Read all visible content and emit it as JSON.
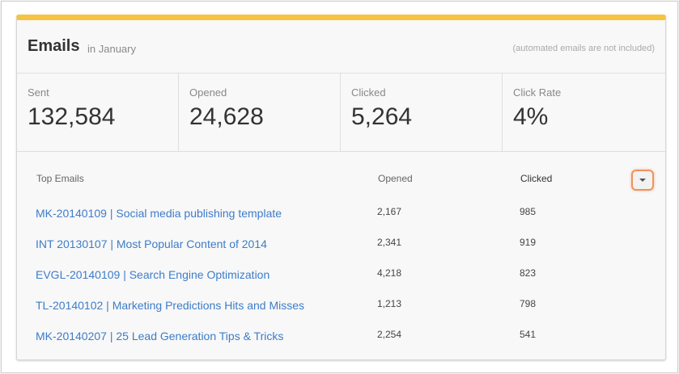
{
  "widget": {
    "title": "Emails",
    "subtitle": "in January",
    "note": "(automated emails are not included)",
    "accent_color": "#f6c343",
    "link_color": "#3d7cc9",
    "highlight_color": "#f0935a"
  },
  "stats": [
    {
      "label": "Sent",
      "value": "132,584"
    },
    {
      "label": "Opened",
      "value": "24,628"
    },
    {
      "label": "Clicked",
      "value": "5,264"
    },
    {
      "label": "Click Rate",
      "value": "4%"
    }
  ],
  "table": {
    "headers": {
      "name": "Top Emails",
      "opened": "Opened",
      "clicked": "Clicked"
    },
    "sort_icon": "caret-down-icon",
    "rows": [
      {
        "name": "MK-20140109 | Social media publishing template",
        "opened": "2,167",
        "clicked": "985"
      },
      {
        "name": "INT 20130107 | Most Popular Content of 2014",
        "opened": "2,341",
        "clicked": "919"
      },
      {
        "name": "EVGL-20140109 | Search Engine Optimization",
        "opened": "4,218",
        "clicked": "823"
      },
      {
        "name": "TL-20140102 | Marketing Predictions Hits and Misses",
        "opened": "1,213",
        "clicked": "798"
      },
      {
        "name": "MK-20140207 | 25 Lead Generation Tips & Tricks",
        "opened": "2,254",
        "clicked": "541"
      }
    ]
  }
}
